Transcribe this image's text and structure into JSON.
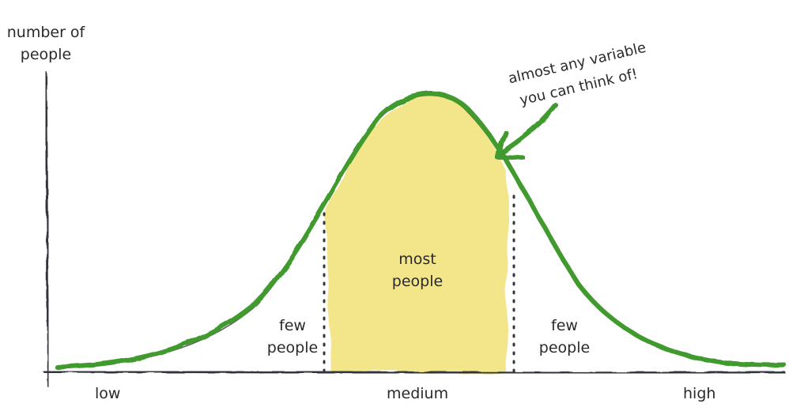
{
  "colors": {
    "curve": "#3f9a2d",
    "fill": "#f2e37f",
    "axis": "#33363a",
    "text": "#2a2a2a",
    "divider": "#33363a"
  },
  "y_axis_label": {
    "line1": "number of",
    "line2": "people"
  },
  "x_axis": {
    "low": "low",
    "medium": "medium",
    "high": "high"
  },
  "regions": {
    "center": {
      "line1": "most",
      "line2": "people"
    },
    "left": {
      "line1": "few",
      "line2": "people"
    },
    "right": {
      "line1": "few",
      "line2": "people"
    }
  },
  "annotation": {
    "line1": "almost any variable",
    "line2": "you can think of!"
  },
  "chart_data": {
    "type": "area",
    "shape": "normal distribution (bell curve)",
    "highlighted_region": "middle section between two dotted dividers"
  }
}
